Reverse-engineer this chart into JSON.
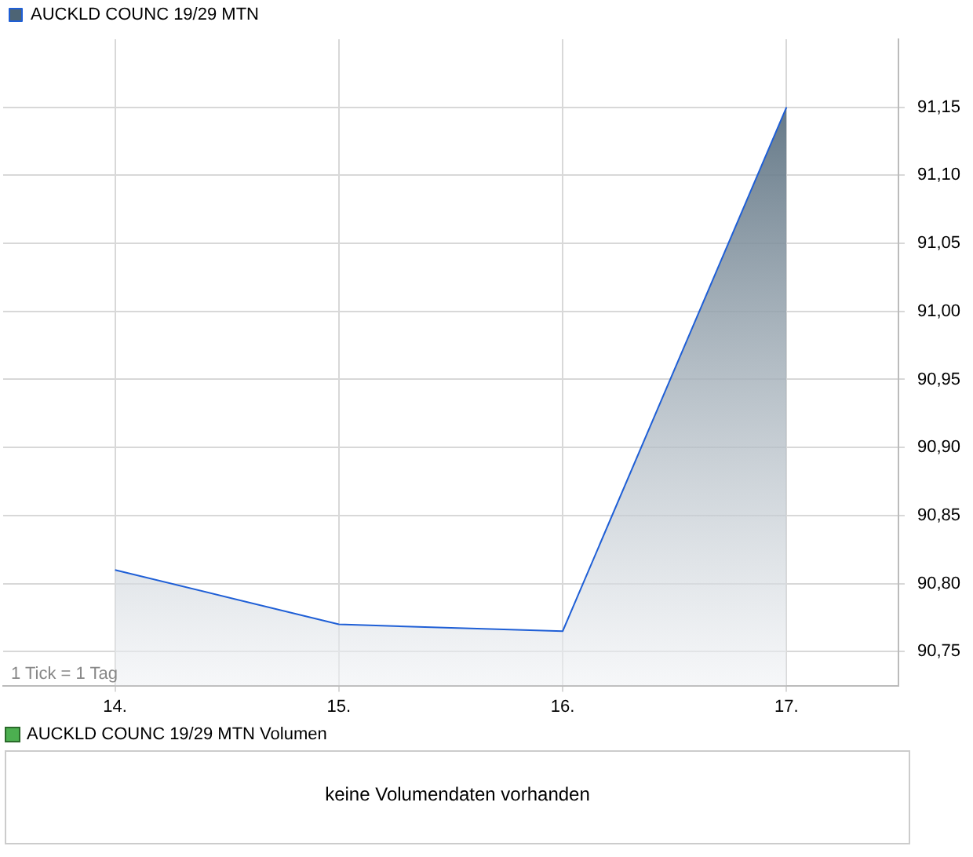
{
  "chart_data": [
    {
      "type": "area",
      "x": [
        14,
        15,
        16,
        17
      ],
      "series": [
        {
          "name": "AUCKLD COUNC 19/29 MTN",
          "color": "#1f5fd6",
          "values": [
            90.81,
            90.77,
            90.765,
            91.15
          ]
        }
      ],
      "xlim": [
        13.5,
        17.5
      ],
      "xticks": [
        {
          "value": 14,
          "label": "14."
        },
        {
          "value": 15,
          "label": "15."
        },
        {
          "value": 16,
          "label": "16."
        },
        {
          "value": 17,
          "label": "17."
        }
      ],
      "ylim": [
        90.725,
        91.2
      ],
      "yticks": [
        {
          "value": 90.75,
          "label": "90,75"
        },
        {
          "value": 90.8,
          "label": "90,80"
        },
        {
          "value": 90.85,
          "label": "90,85"
        },
        {
          "value": 90.9,
          "label": "90,90"
        },
        {
          "value": 90.95,
          "label": "90,95"
        },
        {
          "value": 91,
          "label": "91,00"
        },
        {
          "value": 91.05,
          "label": "91,05"
        },
        {
          "value": 91.1,
          "label": "91,10"
        },
        {
          "value": 91.15,
          "label": "91,15"
        }
      ],
      "grid": true,
      "legend": "top left",
      "annotations": [
        "1 Tick = 1 Tag"
      ]
    },
    {
      "type": "other",
      "title": "AUCKLD COUNC 19/29 MTN Volumen",
      "annotations": [
        "keine Volumendaten vorhanden"
      ]
    }
  ]
}
